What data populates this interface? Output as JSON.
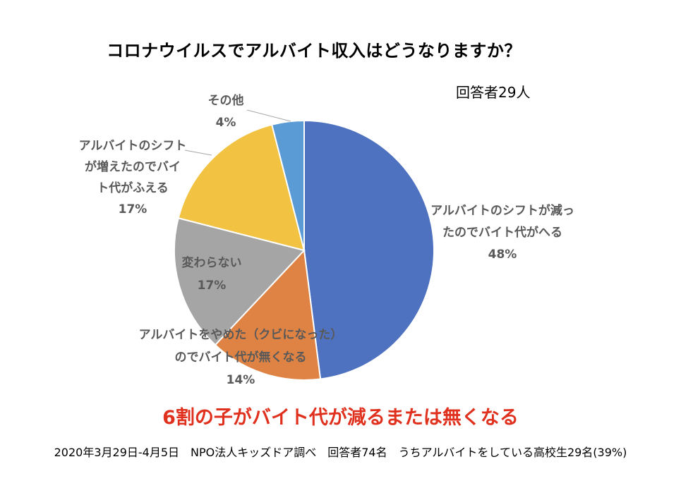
{
  "title": "コロナウイルスでアルバイト収入はどうなりますか？",
  "respondents": "回答者29人",
  "chart_data": {
    "type": "pie",
    "title": "コロナウイルスでアルバイト収入はどうなりますか？",
    "slices": [
      {
        "lines": [
          "アルバイトのシフトが減っ",
          "たのでバイト代がへる"
        ],
        "value": 48,
        "pct": "48%",
        "color": "#4e72c0"
      },
      {
        "lines": [
          "アルバイトをやめた（クビになった）",
          "のでバイト代が無くなる"
        ],
        "value": 14,
        "pct": "14%",
        "color": "#de8344"
      },
      {
        "lines": [
          "変わらない"
        ],
        "value": 17,
        "pct": "17%",
        "color": "#a5a5a5"
      },
      {
        "lines": [
          "アルバイトのシフト",
          "が増えたのでバイ",
          "ト代がふえる"
        ],
        "value": 17,
        "pct": "17%",
        "color": "#f2c242"
      },
      {
        "lines": [
          "その他"
        ],
        "value": 4,
        "pct": "4%",
        "color": "#5b9bd5"
      }
    ]
  },
  "conclusion": "6割の子がバイト代が減るまたは無くなる",
  "source": "2020年3月29日-4月5日　NPO法人キッズドア調べ　回答者74名　うちアルバイトをしている高校生29名(39%)"
}
